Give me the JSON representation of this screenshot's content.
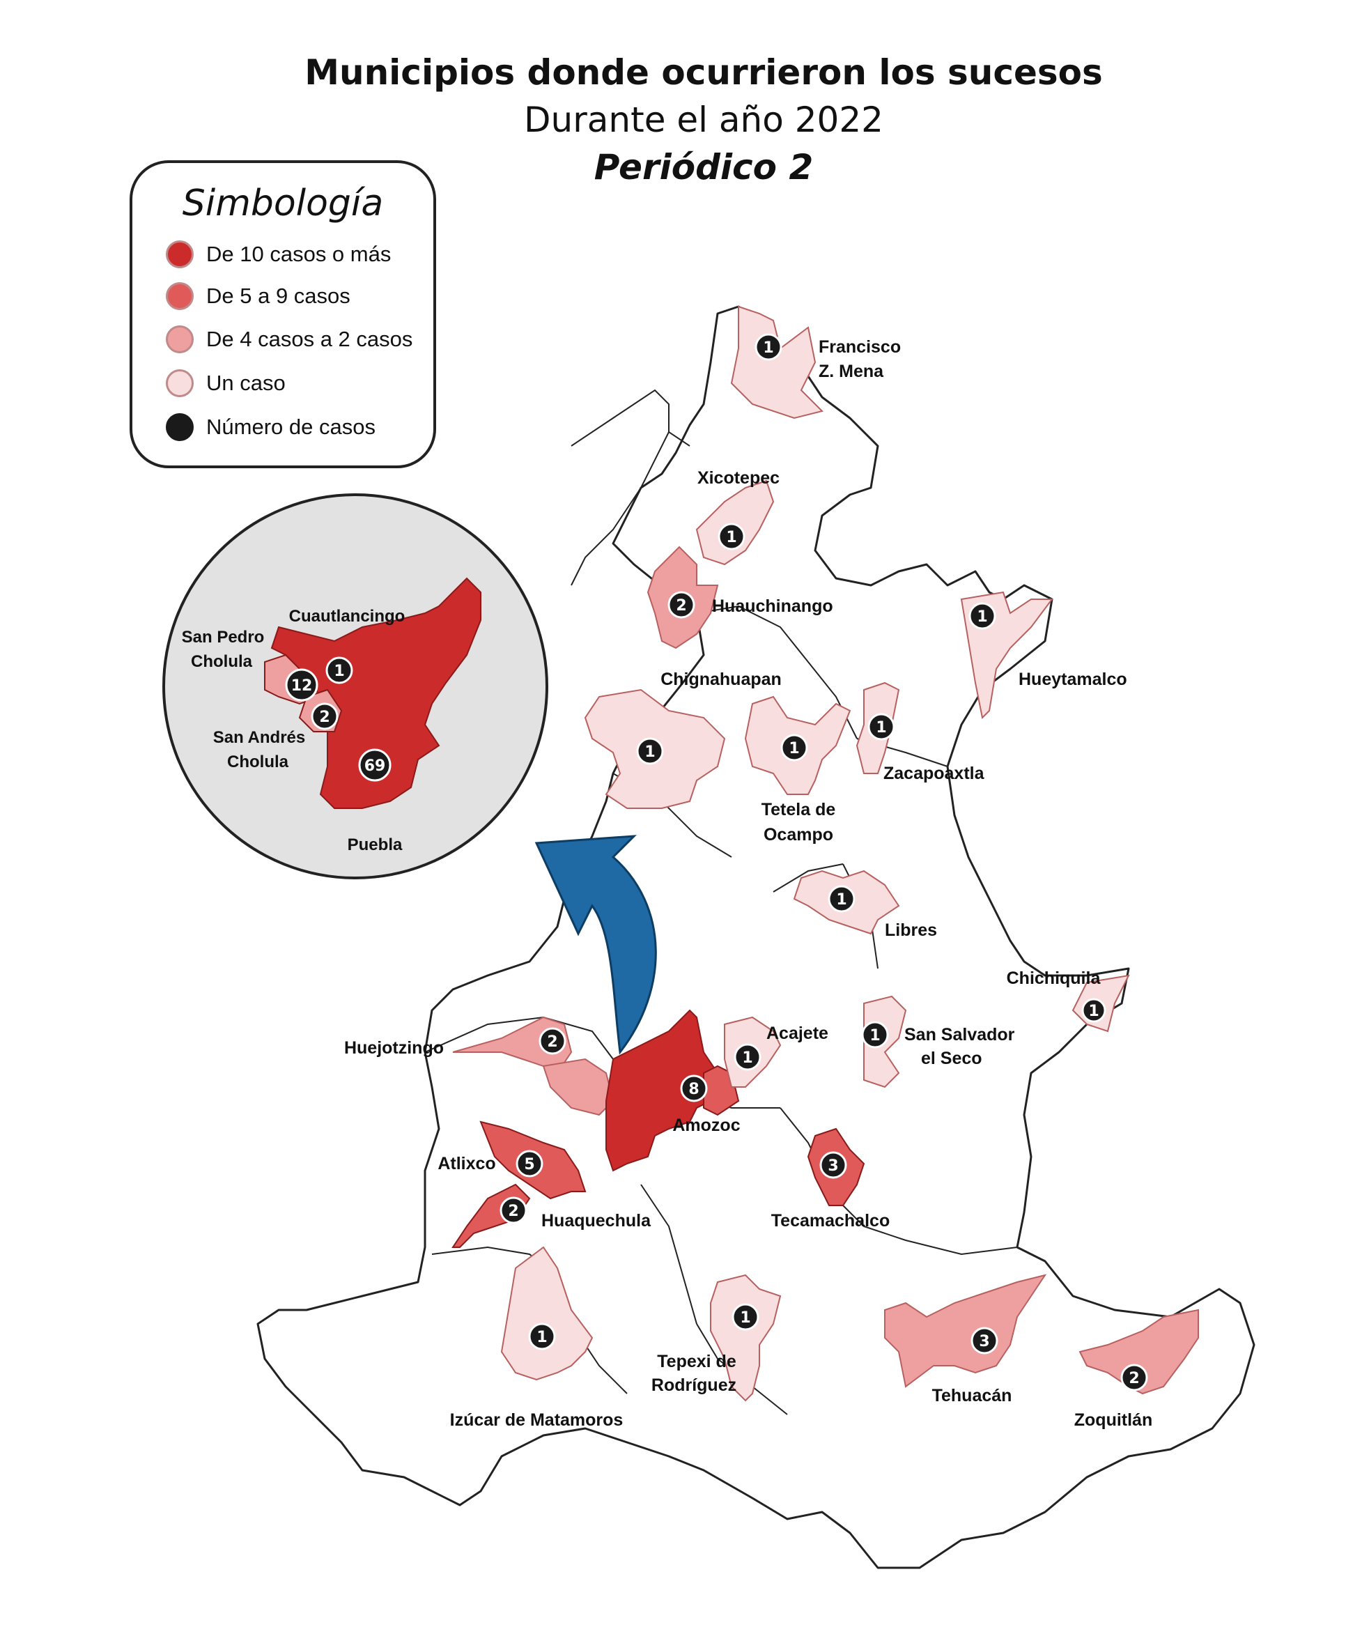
{
  "title": {
    "line1": "Municipios donde ocurrieron los sucesos",
    "line2": "Durante el año 2022",
    "line3": "Periódico 2"
  },
  "legend": {
    "heading": "Simbología",
    "items": [
      {
        "label": "De 10 casos o más",
        "color": "#cc2b2b"
      },
      {
        "label": "De 5 a 9 casos",
        "color": "#e05a5a"
      },
      {
        "label": "De 4 casos a 2 casos",
        "color": "#eea0a0"
      },
      {
        "label": "Un caso",
        "color": "#f8dede"
      },
      {
        "label": "Número de casos",
        "color": "#1a1a1a"
      }
    ]
  },
  "colors": {
    "high": "#cc2b2b",
    "medium": "#e05a5a",
    "low": "#eea0a0",
    "single": "#f8dede",
    "arrow": "#1f6aa5",
    "inset_bg": "#e2e2e2"
  },
  "municipalities": {
    "francisco_z_mena": {
      "name_line1": "Francisco",
      "name_line2": "Z. Mena",
      "cases": "1"
    },
    "xicotepec": {
      "name": "Xicotepec",
      "cases": "1"
    },
    "huauchinango": {
      "name": "Huauchinango",
      "cases": "2"
    },
    "hueytamalco": {
      "name": "Hueytamalco",
      "cases": "1"
    },
    "chignahuapan": {
      "name": "Chignahuapan",
      "cases": "1"
    },
    "tetela": {
      "name_line1": "Tetela de",
      "name_line2": "Ocampo",
      "cases": "1"
    },
    "zacapoaxtla": {
      "name": "Zacapoaxtla",
      "cases": "1"
    },
    "libres": {
      "name": "Libres",
      "cases": "1"
    },
    "chichiquila": {
      "name": "Chichiquila",
      "cases": "1"
    },
    "san_salvador": {
      "name_line1": "San Salvador",
      "name_line2": "el Seco",
      "cases": "1"
    },
    "huejotzingo": {
      "name": "Huejotzingo",
      "cases": "2"
    },
    "acajete": {
      "name": "Acajete",
      "cases": "1"
    },
    "amozoc": {
      "name": "Amozoc",
      "cases": "8"
    },
    "atlixco": {
      "name": "Atlixco",
      "cases": "5"
    },
    "huaquechula": {
      "name": "Huaquechula",
      "cases": "2"
    },
    "tecamachalco": {
      "name": "Tecamachalco",
      "cases": "3"
    },
    "izucar": {
      "name": "Izúcar de Matamoros",
      "cases": "1"
    },
    "tepexi": {
      "name_line1": "Tepexi de",
      "name_line2": "Rodríguez",
      "cases": "1"
    },
    "tehuacan": {
      "name": "Tehuacán",
      "cases": "3"
    },
    "zoquitlan": {
      "name": "Zoquitlán",
      "cases": "2"
    }
  },
  "inset": {
    "cuautlancingo": {
      "name": "Cuautlancingo",
      "cases": "1"
    },
    "san_pedro": {
      "name_line1": "San Pedro",
      "name_line2": "Cholula",
      "cases": "12"
    },
    "san_andres": {
      "name_line1": "San Andrés",
      "name_line2": "Cholula",
      "cases": "2"
    },
    "puebla": {
      "name": "Puebla",
      "cases": "69"
    }
  }
}
